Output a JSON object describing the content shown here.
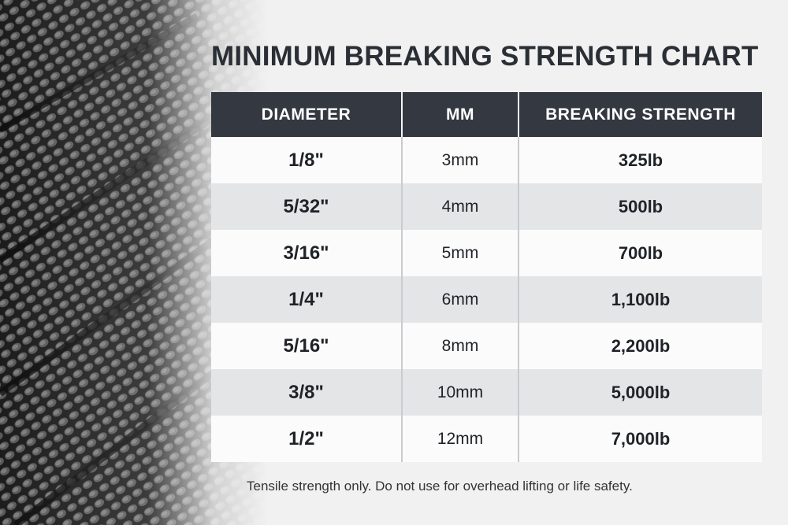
{
  "chart_data": {
    "type": "table",
    "title": "MINIMUM BREAKING STRENGTH CHART",
    "columns": [
      "DIAMETER",
      "MM",
      "BREAKING STRENGTH"
    ],
    "rows": [
      [
        "1/8\"",
        "3mm",
        "325lb"
      ],
      [
        "5/32\"",
        "4mm",
        "500lb"
      ],
      [
        "3/16\"",
        "5mm",
        "700lb"
      ],
      [
        "1/4\"",
        "6mm",
        "1,100lb"
      ],
      [
        "5/16\"",
        "8mm",
        "2,200lb"
      ],
      [
        "3/8\"",
        "10mm",
        "5,000lb"
      ],
      [
        "1/2\"",
        "12mm",
        "7,000lb"
      ]
    ],
    "values_lb": [
      325,
      500,
      700,
      1100,
      2200,
      5000,
      7000
    ]
  },
  "footnote": "Tensile strength only. Do not use for overhead lifting or life safety.",
  "colors": {
    "header_bg": "#333841",
    "header_text": "#ffffff",
    "row_light": "#fbfbfb",
    "row_dark": "#e4e5e7",
    "title_text": "#2a2e35"
  },
  "photo": {
    "subject": "braided-rope-closeup"
  }
}
